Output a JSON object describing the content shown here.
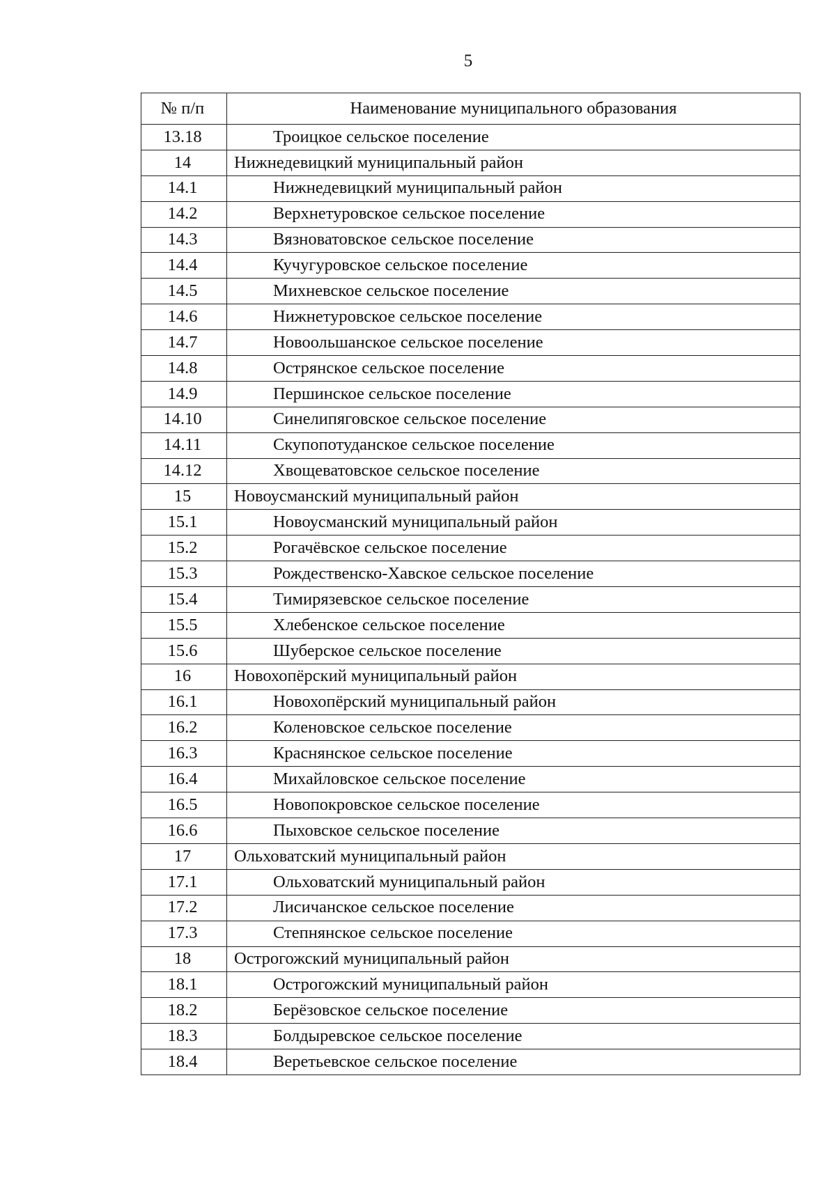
{
  "page_number": "5",
  "table": {
    "headers": [
      "№ п/п",
      "Наименование муниципального образования"
    ],
    "rows": [
      {
        "num": "13.18",
        "name": "Троицкое сельское поселение",
        "sub": true
      },
      {
        "num": "14",
        "name": "Нижнедевицкий муниципальный район",
        "sub": false
      },
      {
        "num": "14.1",
        "name": "Нижнедевицкий муниципальный район",
        "sub": true
      },
      {
        "num": "14.2",
        "name": "Верхнетуровское сельское поселение",
        "sub": true
      },
      {
        "num": "14.3",
        "name": "Вязноватовское сельское поселение",
        "sub": true
      },
      {
        "num": "14.4",
        "name": "Кучугуровское сельское поселение",
        "sub": true
      },
      {
        "num": "14.5",
        "name": "Михневское сельское поселение",
        "sub": true
      },
      {
        "num": "14.6",
        "name": "Нижнетуровское сельское поселение",
        "sub": true
      },
      {
        "num": "14.7",
        "name": "Новоольшанское сельское поселение",
        "sub": true
      },
      {
        "num": "14.8",
        "name": "Острянское сельское поселение",
        "sub": true
      },
      {
        "num": "14.9",
        "name": "Першинское сельское поселение",
        "sub": true
      },
      {
        "num": "14.10",
        "name": "Синелипяговское сельское поселение",
        "sub": true
      },
      {
        "num": "14.11",
        "name": "Скупопотуданское сельское поселение",
        "sub": true
      },
      {
        "num": "14.12",
        "name": "Хвощеватовское сельское поселение",
        "sub": true
      },
      {
        "num": "15",
        "name": "Новоусманский муниципальный район",
        "sub": false
      },
      {
        "num": "15.1",
        "name": "Новоусманский муниципальный район",
        "sub": true
      },
      {
        "num": "15.2",
        "name": "Рогачёвское сельское поселение",
        "sub": true
      },
      {
        "num": "15.3",
        "name": "Рождественско-Хавское сельское поселение",
        "sub": true
      },
      {
        "num": "15.4",
        "name": "Тимирязевское сельское поселение",
        "sub": true
      },
      {
        "num": "15.5",
        "name": "Хлебенское сельское поселение",
        "sub": true
      },
      {
        "num": "15.6",
        "name": "Шуберское сельское поселение",
        "sub": true
      },
      {
        "num": "16",
        "name": "Новохопёрский муниципальный район",
        "sub": false
      },
      {
        "num": "16.1",
        "name": "Новохопёрский муниципальный район",
        "sub": true
      },
      {
        "num": "16.2",
        "name": "Коленовское сельское поселение",
        "sub": true
      },
      {
        "num": "16.3",
        "name": "Краснянское сельское поселение",
        "sub": true
      },
      {
        "num": "16.4",
        "name": "Михайловское сельское поселение",
        "sub": true
      },
      {
        "num": "16.5",
        "name": "Новопокровское сельское поселение",
        "sub": true
      },
      {
        "num": "16.6",
        "name": "Пыховское сельское поселение",
        "sub": true
      },
      {
        "num": "17",
        "name": "Ольховатский муниципальный район",
        "sub": false
      },
      {
        "num": "17.1",
        "name": "Ольховатский муниципальный район",
        "sub": true
      },
      {
        "num": "17.2",
        "name": "Лисичанское сельское поселение",
        "sub": true
      },
      {
        "num": "17.3",
        "name": "Степнянское сельское поселение",
        "sub": true
      },
      {
        "num": "18",
        "name": "Острогожский муниципальный район",
        "sub": false
      },
      {
        "num": "18.1",
        "name": "Острогожский муниципальный район",
        "sub": true
      },
      {
        "num": "18.2",
        "name": "Берёзовское сельское поселение",
        "sub": true
      },
      {
        "num": "18.3",
        "name": "Болдыревское сельское поселение",
        "sub": true
      },
      {
        "num": "18.4",
        "name": "Веретьевское сельское поселение",
        "sub": true
      }
    ]
  }
}
